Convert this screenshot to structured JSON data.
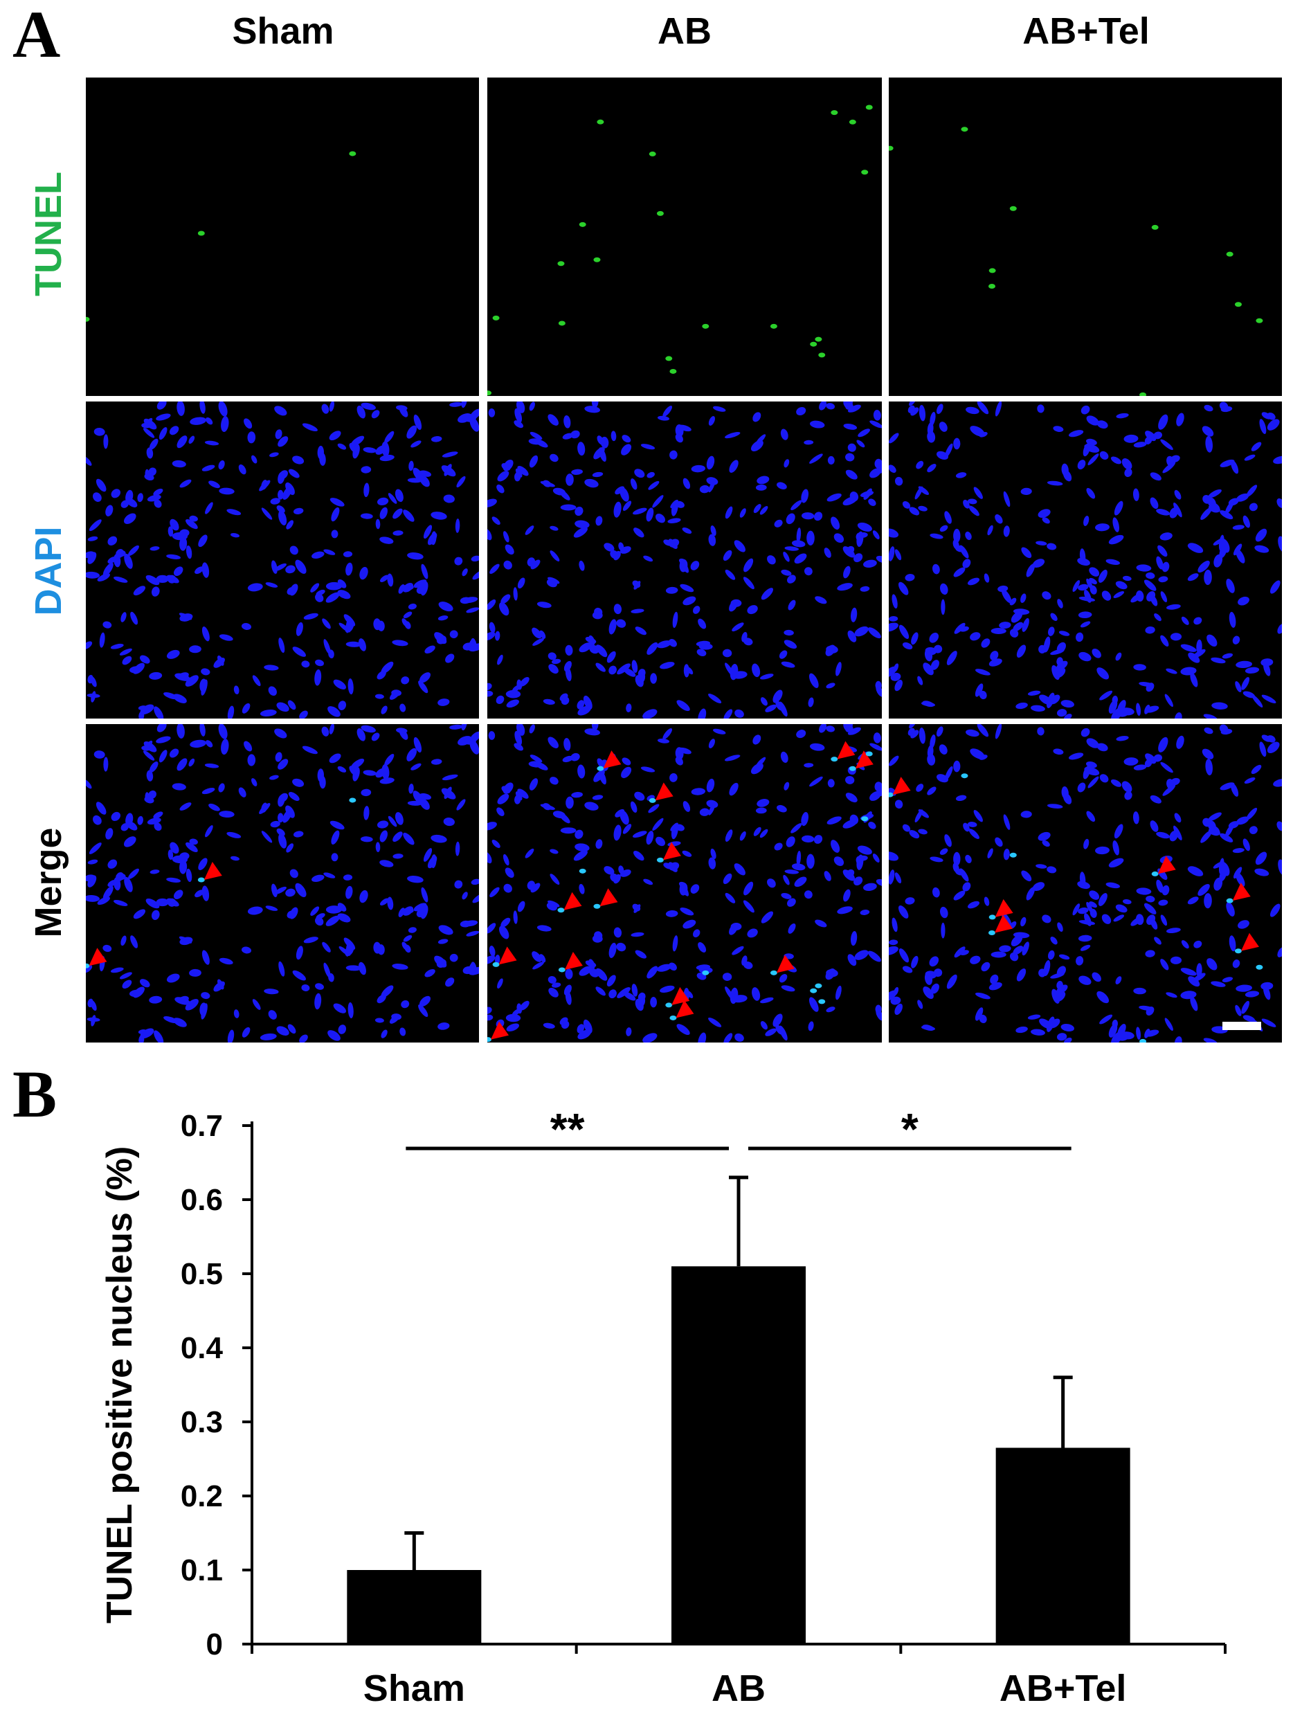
{
  "panel_a": {
    "letter": "A",
    "columns": [
      "Sham",
      "AB",
      "AB+Tel"
    ],
    "rows": [
      {
        "label": "TUNEL",
        "color": "#22b04b"
      },
      {
        "label": "DAPI",
        "color": "#1e8fe0"
      },
      {
        "label": "Merge",
        "color": "#000000"
      }
    ],
    "colors": {
      "tunel_stain": "#2bd12b",
      "dapi_stain": "#1a1af5",
      "merge_positive": "#29c8ff",
      "arrowhead": "#ff0000"
    },
    "arrowheads_per_column": [
      2,
      13,
      6
    ]
  },
  "panel_b": {
    "letter": "B"
  },
  "chart_data": {
    "type": "bar",
    "categories": [
      "Sham",
      "AB",
      "AB+Tel"
    ],
    "values": [
      0.1,
      0.51,
      0.265
    ],
    "errors": [
      0.05,
      0.12,
      0.095
    ],
    "ylabel": "TUNEL positive nucleus (%)",
    "xlabel": "",
    "ylim": [
      0,
      0.7
    ],
    "yticks": [
      "0",
      "0.1",
      "0.2",
      "0.3",
      "0.4",
      "0.5",
      "0.6",
      "0.7"
    ],
    "significance": [
      {
        "from": "Sham",
        "to": "AB",
        "label": "**"
      },
      {
        "from": "AB",
        "to": "AB+Tel",
        "label": "*"
      }
    ],
    "bar_color": "#000000",
    "grid": false
  }
}
